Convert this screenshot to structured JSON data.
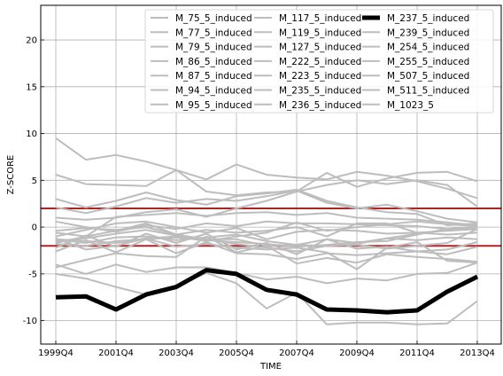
{
  "chart_data": {
    "type": "line",
    "xlabel": "TIME",
    "ylabel": "Z-SCORE",
    "ylim": [
      -12.5,
      23.7
    ],
    "grid": true,
    "legend_position": "top-right",
    "categories": [
      "1999Q4",
      "2000Q4",
      "2001Q4",
      "2002Q4",
      "2003Q4",
      "2004Q4",
      "2005Q4",
      "2006Q4",
      "2007Q4",
      "2008Q4",
      "2009Q4",
      "2010Q4",
      "2011Q4",
      "2012Q4",
      "2013Q4"
    ],
    "x_tick_labels": [
      "1999Q4",
      "2001Q4",
      "2003Q4",
      "2005Q4",
      "2007Q4",
      "2009Q4",
      "2011Q4",
      "2013Q4"
    ],
    "y_ticks": [
      -10,
      -5,
      0,
      5,
      10,
      15,
      20
    ],
    "reference_lines": [
      2,
      -2
    ],
    "colors": {
      "background": "#ffffff",
      "series": "#bdbdbd",
      "highlight": "#000000",
      "reference": "#b22222",
      "grid": "#b0b0b0"
    },
    "highlight_series": "M_237_5_induced",
    "series": [
      {
        "name": "M_75_5_induced",
        "values": [
          9.5,
          7.2,
          7.7,
          7.0,
          6.1,
          5.1,
          6.7,
          5.6,
          5.3,
          5.1,
          5.9,
          5.5,
          4.9,
          4.1,
          3.1
        ]
      },
      {
        "name": "M_77_5_induced",
        "values": [
          5.6,
          4.6,
          4.5,
          4.4,
          6.1,
          3.8,
          3.4,
          3.7,
          3.8,
          5.8,
          4.3,
          5.2,
          5.8,
          5.9,
          4.9
        ]
      },
      {
        "name": "M_79_5_induced",
        "values": [
          3.0,
          2.1,
          2.8,
          3.7,
          2.9,
          2.4,
          3.3,
          3.6,
          4.0,
          2.8,
          2.1,
          1.6,
          1.4,
          0.2,
          0.4
        ]
      },
      {
        "name": "M_86_5_induced",
        "values": [
          2.1,
          1.5,
          2.2,
          3.1,
          2.6,
          3.0,
          2.8,
          3.3,
          3.9,
          2.6,
          2.0,
          2.4,
          1.7,
          0.9,
          0.5
        ]
      },
      {
        "name": "M_87_5_induced",
        "values": [
          1.0,
          0.8,
          1.0,
          1.6,
          1.9,
          1.1,
          2.0,
          2.8,
          3.8,
          4.5,
          5.0,
          4.6,
          5.0,
          4.5,
          2.2
        ]
      },
      {
        "name": "M_94_5_induced",
        "values": [
          0.6,
          0.0,
          -0.5,
          0.2,
          -0.2,
          0.4,
          0.1,
          0.6,
          0.4,
          0.4,
          0.3,
          0.2,
          0.1,
          -0.2,
          0.0
        ]
      },
      {
        "name": "M_95_5_induced",
        "values": [
          -0.6,
          -1.0,
          1.1,
          1.3,
          1.5,
          1.2,
          1.5,
          1.6,
          1.3,
          1.5,
          1.0,
          0.9,
          0.8,
          0.5,
          0.2
        ]
      },
      {
        "name": "M_117_5_induced",
        "values": [
          -1.0,
          -0.3,
          0.4,
          0.6,
          0.0,
          -0.6,
          -0.1,
          -1.3,
          -0.5,
          -0.3,
          -0.4,
          -0.7,
          -0.6,
          -0.8,
          -0.6
        ]
      },
      {
        "name": "M_119_5_induced",
        "values": [
          -1.3,
          -1.7,
          -1.1,
          -1.0,
          -1.4,
          -1.1,
          -0.8,
          -1.5,
          -1.9,
          -1.3,
          -1.7,
          -1.2,
          -1.4,
          -1.1,
          -1.3
        ]
      },
      {
        "name": "M_127_5_induced",
        "values": [
          -1.5,
          -1.2,
          -0.7,
          -0.3,
          -0.9,
          -1.3,
          -1.8,
          -2.2,
          -2.6,
          -2.0,
          -1.9,
          -2.3,
          -2.0,
          -1.7,
          -0.2
        ]
      },
      {
        "name": "M_222_5_induced",
        "values": [
          -1.8,
          -2.0,
          -1.5,
          -1.3,
          -1.1,
          -1.4,
          -1.6,
          -1.8,
          -2.1,
          -1.9,
          -1.6,
          -1.5,
          -0.8,
          -0.2,
          0.0
        ]
      },
      {
        "name": "M_223_5_induced",
        "values": [
          -2.2,
          -0.9,
          -2.1,
          -0.7,
          -1.7,
          -0.7,
          -2.4,
          -1.7,
          -2.9,
          -1.3,
          -2.3,
          -2.1,
          -2.6,
          -2.4,
          -1.6
        ]
      },
      {
        "name": "M_235_5_induced",
        "values": [
          -2.6,
          -1.4,
          -2.7,
          -1.3,
          -2.8,
          -1.6,
          -2.8,
          -2.9,
          -3.4,
          -2.8,
          -3.0,
          -2.8,
          -2.6,
          -2.9,
          -2.1
        ]
      },
      {
        "name": "M_236_5_induced",
        "values": [
          -1.3,
          -1.5,
          -1.7,
          -1.2,
          -1.0,
          -1.5,
          -1.0,
          -0.6,
          0.5,
          -0.4,
          0.0,
          0.3,
          0.6,
          0.3,
          0.1
        ]
      },
      {
        "name": "M_237_5_induced",
        "values": [
          -7.5,
          -7.4,
          -8.8,
          -7.2,
          -6.4,
          -4.6,
          -5.0,
          -6.7,
          -7.2,
          -8.8,
          -8.9,
          -9.1,
          -8.9,
          -6.9,
          -5.3
        ]
      },
      {
        "name": "M_239_5_induced",
        "values": [
          -4.0,
          -5.0,
          -4.0,
          -4.8,
          -4.3,
          -4.3,
          -4.9,
          -5.6,
          -5.3,
          -6.0,
          -5.5,
          -5.7,
          -5.0,
          -4.9,
          -3.8
        ]
      },
      {
        "name": "M_254_5_induced",
        "values": [
          -5.0,
          -5.5,
          -6.4,
          -7.2,
          -6.4,
          -4.9,
          -6.0,
          -8.7,
          -7.0,
          -10.4,
          -10.2,
          -10.2,
          -10.4,
          -10.3,
          -7.9
        ]
      },
      {
        "name": "M_255_5_induced",
        "values": [
          -4.3,
          -3.5,
          -2.8,
          -3.1,
          -3.2,
          -1.0,
          -2.7,
          -2.0,
          -3.9,
          -3.3,
          -3.8,
          -2.9,
          -3.2,
          -3.4,
          -3.7
        ]
      },
      {
        "name": "M_507_5_induced",
        "values": [
          -1.2,
          -2.4,
          -2.0,
          -1.2,
          -2.1,
          -1.8,
          -2.2,
          -2.4,
          -2.2,
          -2.7,
          -4.5,
          -2.2,
          -1.6,
          -3.6,
          -3.8
        ]
      },
      {
        "name": "M_511_5_induced",
        "values": [
          -1.7,
          -1.0,
          -0.4,
          0.4,
          -0.8,
          -0.3,
          -0.6,
          -0.4,
          0.0,
          -1.0,
          0.4,
          0.4,
          -0.6,
          -0.4,
          -0.2
        ]
      },
      {
        "name": "M_1023_5",
        "values": [
          -0.4,
          -0.1,
          -0.3,
          0.0,
          -0.8,
          -1.3,
          -1.3,
          -2.0,
          -1.9,
          -2.0,
          -1.8,
          -1.2,
          -0.7,
          -0.3,
          -0.2
        ]
      }
    ]
  }
}
